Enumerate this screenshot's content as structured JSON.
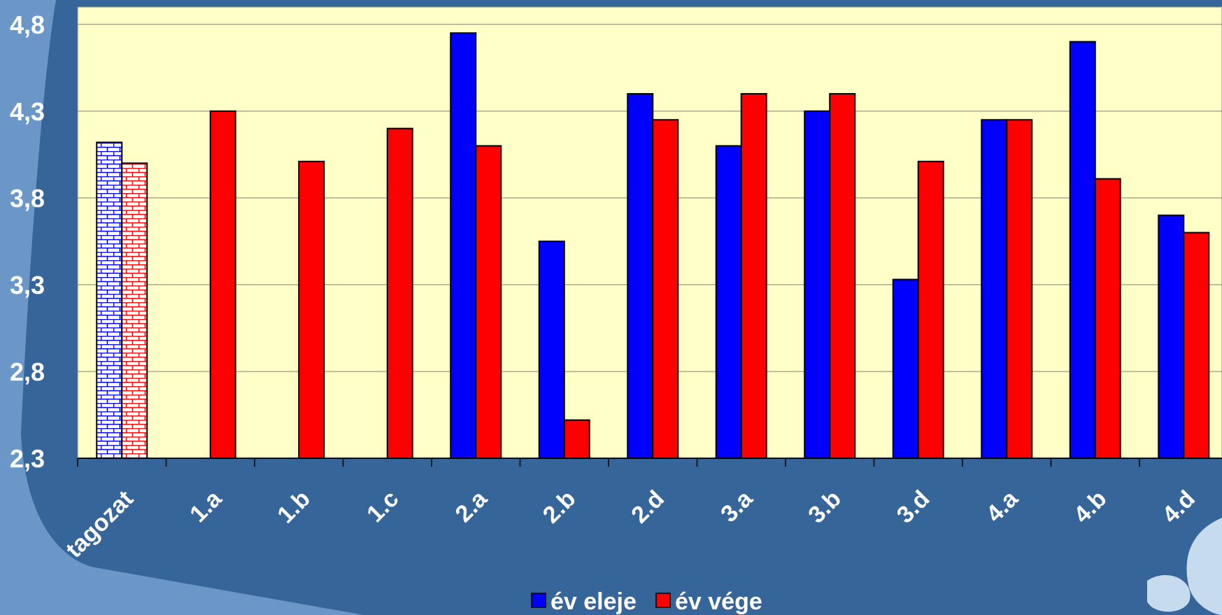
{
  "chart_data": {
    "type": "bar",
    "categories": [
      "tagozat",
      "1.a",
      "1.b",
      "1.c",
      "2.a",
      "2.b",
      "2.d",
      "3.a",
      "3.b",
      "3.d",
      "4.a",
      "4.b",
      "4.d"
    ],
    "series": [
      {
        "name": "év eleje",
        "color": "#0000ff",
        "values": [
          4.12,
          null,
          null,
          null,
          4.75,
          3.55,
          4.4,
          4.1,
          4.3,
          3.33,
          4.25,
          4.7,
          3.7
        ]
      },
      {
        "name": "év vége",
        "color": "#ff0000",
        "values": [
          4.0,
          4.3,
          4.01,
          4.2,
          4.1,
          2.52,
          4.25,
          4.4,
          4.4,
          4.01,
          4.25,
          3.91,
          3.6
        ]
      }
    ],
    "ylim": [
      2.3,
      4.8
    ],
    "y_ticks": [
      "2,3",
      "2,8",
      "3,3",
      "3,8",
      "4,3",
      "4,8"
    ],
    "y_tick_values": [
      2.3,
      2.8,
      3.3,
      3.8,
      4.3,
      4.8
    ],
    "hatched_categories": [
      "tagozat"
    ],
    "plot_background": "#ffffc8",
    "grid": true,
    "legend_position": "bottom-center",
    "title": "",
    "xlabel": "",
    "ylabel": ""
  }
}
